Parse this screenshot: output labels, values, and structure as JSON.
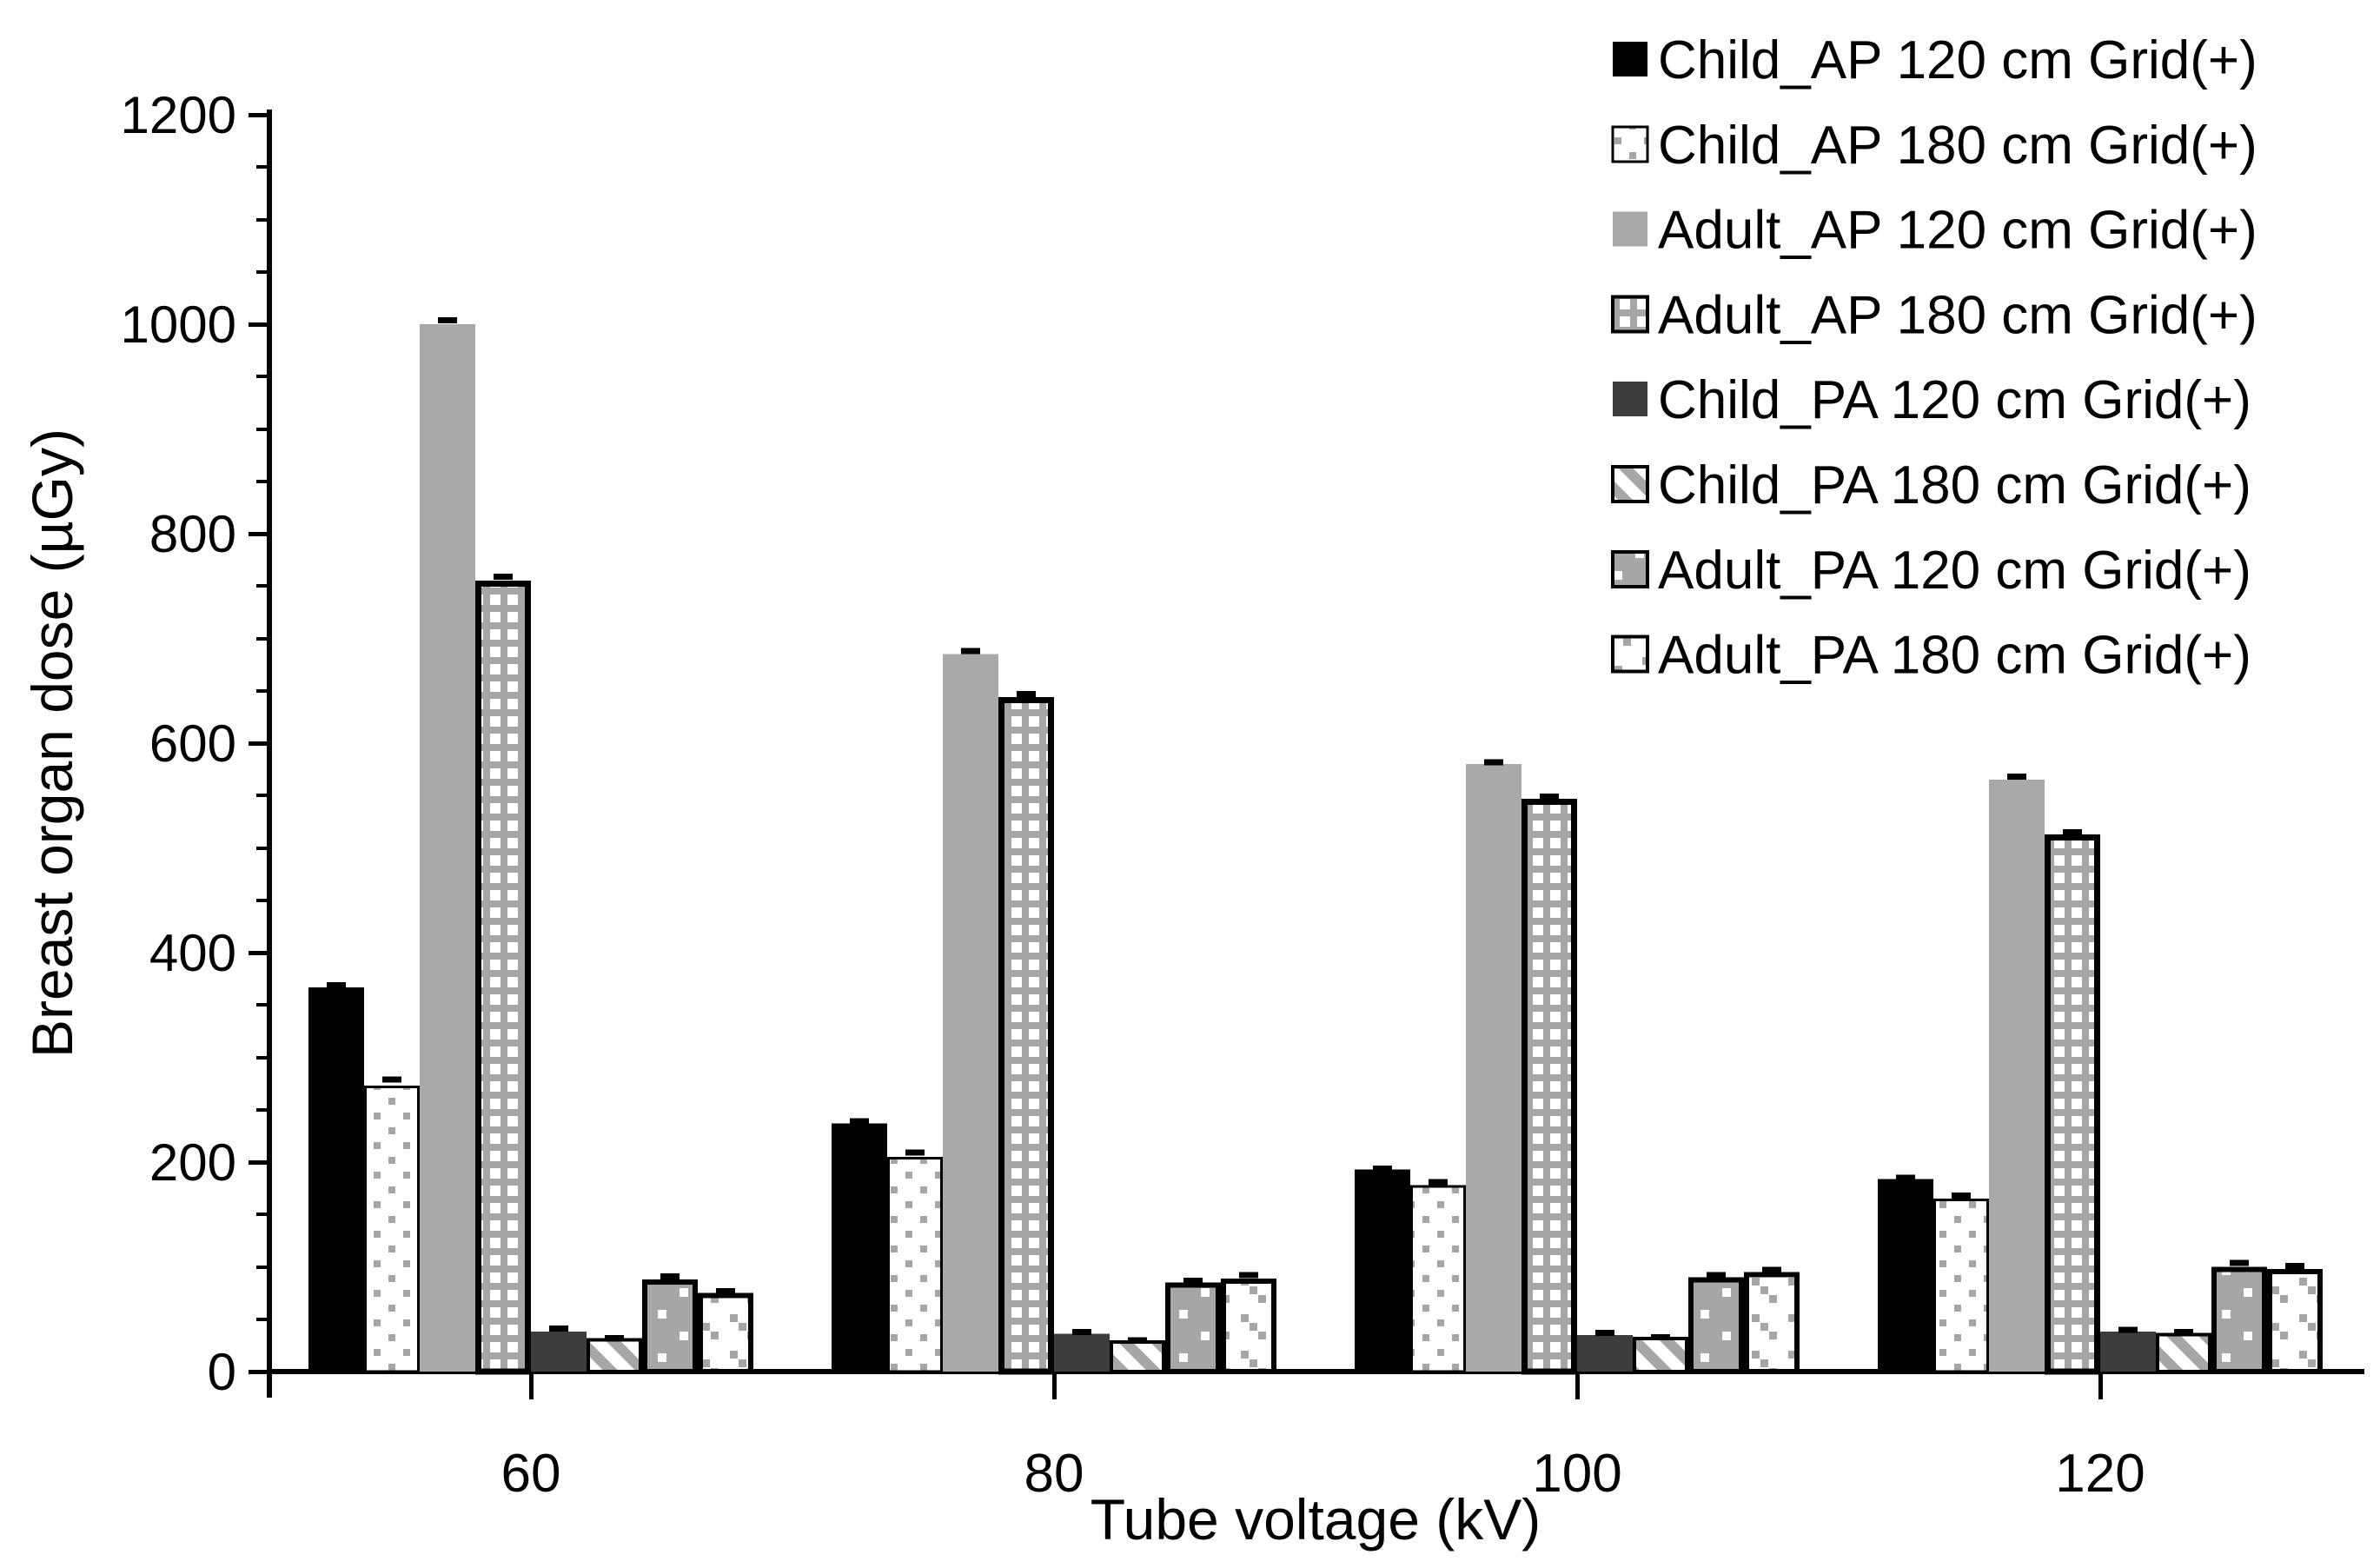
{
  "chart_data": {
    "type": "bar",
    "title": "",
    "xlabel": "Tube voltage (kV)",
    "ylabel": "Breast organ dose (µGy)",
    "categories": [
      "60",
      "80",
      "100",
      "120"
    ],
    "ylim": [
      0,
      1200
    ],
    "ytick_labels": [
      "0",
      "200",
      "400",
      "600",
      "800",
      "1000",
      "1200"
    ],
    "ytick_step": 200,
    "yminor_step": 50,
    "grid": false,
    "legend_position": "top-right",
    "series": [
      {
        "name": "Child_AP 120 cm Grid(+)",
        "pattern": "solid-black",
        "values": [
          367,
          237,
          193,
          184
        ],
        "errors": [
          4,
          4,
          3,
          3
        ]
      },
      {
        "name": "Child_AP 180 cm Grid(+)",
        "pattern": "dots-gray-on-white",
        "values": [
          273,
          205,
          178,
          165
        ],
        "errors": [
          8,
          6,
          5,
          5
        ]
      },
      {
        "name": "Adult_AP 120 cm Grid(+)",
        "pattern": "solid-lightgray",
        "values": [
          1000,
          685,
          580,
          565
        ],
        "errors": [
          6,
          5,
          4,
          5
        ]
      },
      {
        "name": "Adult_AP 180 cm Grid(+)",
        "pattern": "check-white-on-gray",
        "values": [
          755,
          644,
          547,
          513
        ],
        "errors": [
          6,
          5,
          4,
          4
        ]
      },
      {
        "name": "Child_PA 120 cm Grid(+)",
        "pattern": "solid-darkgray",
        "values": [
          38,
          36,
          35,
          38
        ],
        "errors": [
          5,
          4,
          4,
          4
        ]
      },
      {
        "name": "Child_PA 180 cm Grid(+)",
        "pattern": "diag-steps-gray-on-white",
        "values": [
          32,
          30,
          33,
          37
        ],
        "errors": [
          2,
          2,
          2,
          3
        ]
      },
      {
        "name": "Adult_PA 120 cm Grid(+)",
        "pattern": "dots-white-on-gray",
        "values": [
          88,
          85,
          90,
          100
        ],
        "errors": [
          5,
          4,
          4,
          6
        ]
      },
      {
        "name": "Adult_PA 180 cm Grid(+)",
        "pattern": "diag-dash-gray-on-white",
        "values": [
          75,
          89,
          95,
          98
        ],
        "errors": [
          4,
          5,
          4,
          5
        ]
      }
    ],
    "colors": {
      "foreground": "#000000",
      "light_gray": "#a9a9a9",
      "dark_gray": "#3d3d3d",
      "pattern_gray": "#a6a6a6",
      "background": "#ffffff"
    }
  }
}
